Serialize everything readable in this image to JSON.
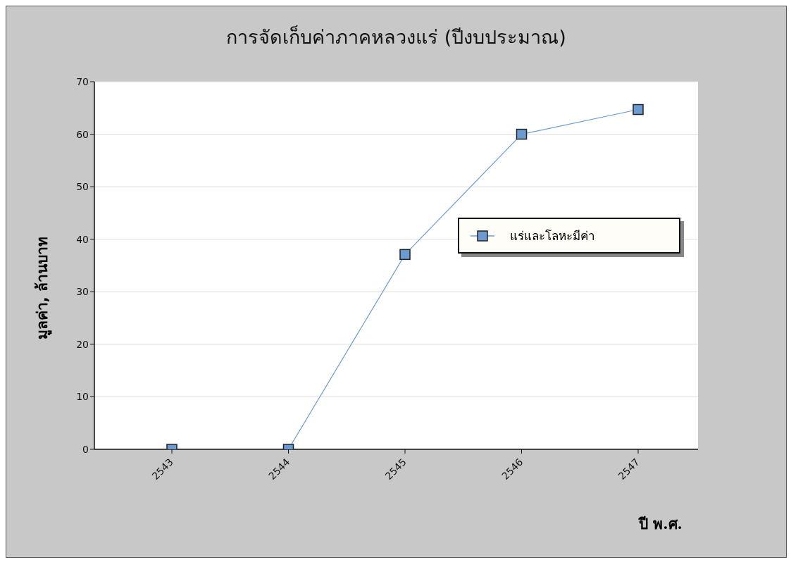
{
  "chart_data": {
    "type": "line",
    "title": "การจัดเก็บค่าภาคหลวงแร่ (ปีงบประมาณ)",
    "xlabel": "ปี พ.ศ.",
    "ylabel": "มูลค่า, ล้านบาท",
    "categories": [
      "2543",
      "2544",
      "2545",
      "2546",
      "2547"
    ],
    "series": [
      {
        "name": "แร่และโลหะมีค่า",
        "color": "#6b9bd0",
        "values": [
          0,
          0,
          37.1,
          60,
          64.7
        ]
      }
    ],
    "ylim": [
      0,
      70
    ],
    "yticks": [
      0,
      10,
      20,
      30,
      40,
      50,
      60,
      70
    ],
    "grid": "y",
    "legend": "right",
    "marker": "square",
    "line_style": "solid"
  }
}
